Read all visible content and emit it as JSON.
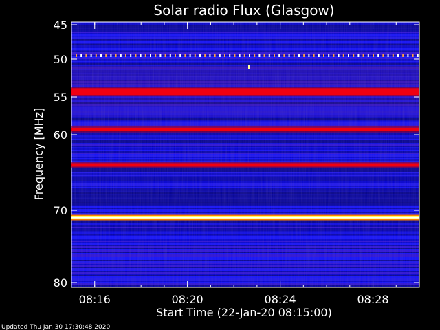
{
  "chart_data": {
    "type": "heatmap",
    "title": "Solar radio Flux (Glasgow)",
    "xlabel": "Start Time (22-Jan-20 08:15:00)",
    "ylabel": "Frequency [MHz]",
    "x_ticks": [
      "08:16",
      "08:20",
      "08:24",
      "08:28"
    ],
    "x_tick_minutes": [
      16,
      20,
      24,
      28
    ],
    "xlim_minutes": [
      15,
      30
    ],
    "y_ticks": [
      45,
      50,
      55,
      60,
      70,
      80
    ],
    "ylim_mhz": [
      45,
      80
    ],
    "colormap": [
      "#0000a0",
      "#0000ff",
      "#ff0000",
      "#ffff00",
      "#ffffff"
    ],
    "bands": [
      {
        "freq_mhz": 49.5,
        "intensity": 0.8,
        "pattern": "dotted"
      },
      {
        "freq_mhz": 54.3,
        "intensity": 0.7
      },
      {
        "freq_mhz": 59.3,
        "intensity": 0.75
      },
      {
        "freq_mhz": 64.0,
        "intensity": 0.8
      },
      {
        "freq_mhz": 71.0,
        "intensity": 1.0
      }
    ]
  },
  "footer": {
    "updated": "Updated Thu Jan 30 17:30:48 2020"
  }
}
